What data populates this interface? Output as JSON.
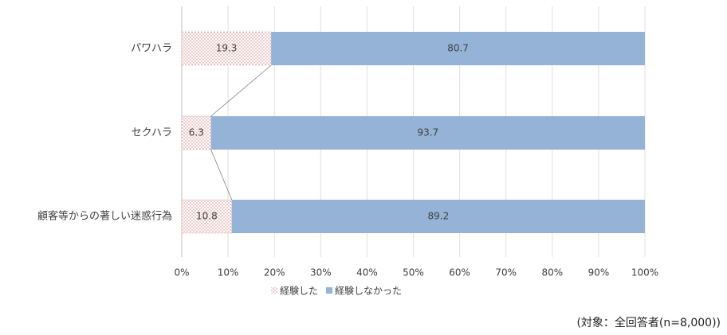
{
  "chart_data": {
    "type": "stacked-bar-horizontal",
    "categories": [
      "パワハラ",
      "セクハラ",
      "顧客等からの著しい迷惑行為"
    ],
    "series": [
      {
        "name": "経験した",
        "color": "#e09a9a",
        "pattern": "dots",
        "values": [
          19.3,
          6.3,
          10.8
        ]
      },
      {
        "name": "経験しなかった",
        "color": "#95b3d7",
        "values": [
          80.7,
          93.7,
          89.2
        ]
      }
    ],
    "xlim": [
      0,
      100
    ],
    "xticks": [
      {
        "value": 0,
        "label": "0%"
      },
      {
        "value": 10,
        "label": "10%"
      },
      {
        "value": 20,
        "label": "20%"
      },
      {
        "value": 30,
        "label": "30%"
      },
      {
        "value": 40,
        "label": "40%"
      },
      {
        "value": 50,
        "label": "50%"
      },
      {
        "value": 60,
        "label": "60%"
      },
      {
        "value": 70,
        "label": "70%"
      },
      {
        "value": 80,
        "label": "80%"
      },
      {
        "value": 90,
        "label": "90%"
      },
      {
        "value": 100,
        "label": "100%"
      }
    ],
    "grid": true,
    "legend": "bottom",
    "note": "(対象：全回答者(n=8,000))"
  }
}
